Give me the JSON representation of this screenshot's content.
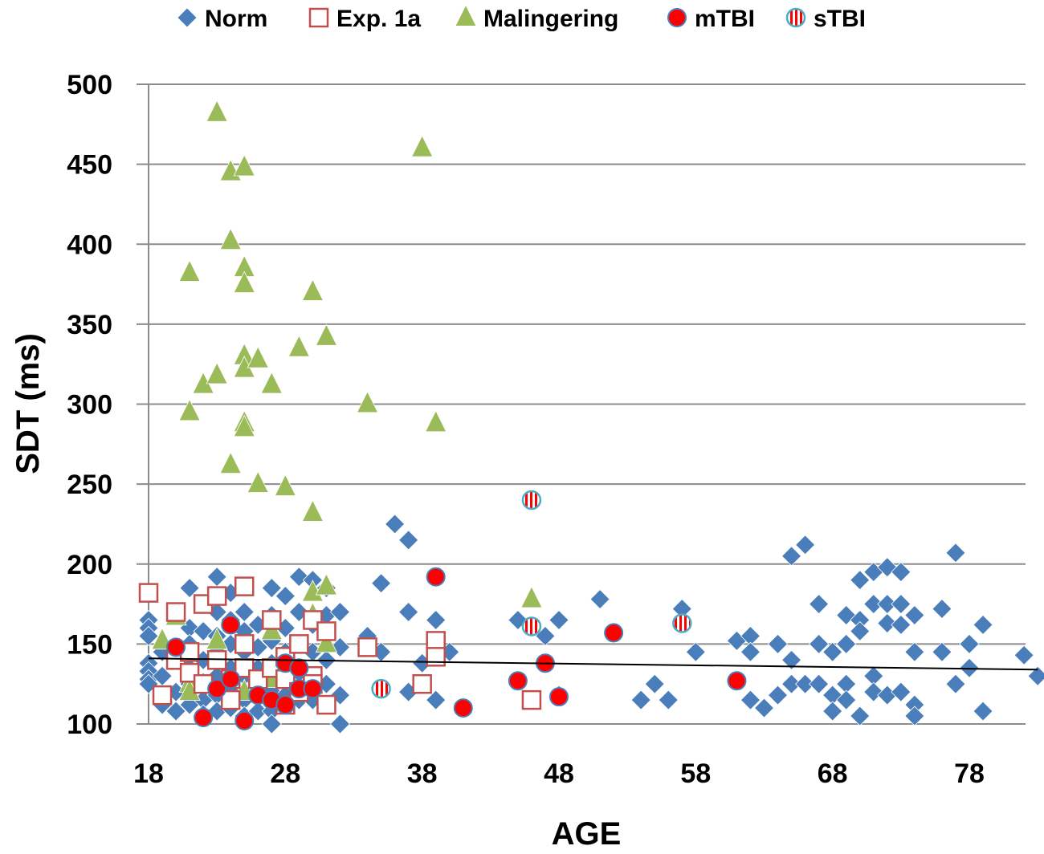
{
  "chart_data": {
    "type": "scatter",
    "title": "",
    "xlabel": "AGE",
    "ylabel": "SDT (ms)",
    "xlim": [
      18,
      83
    ],
    "ylim": [
      100,
      500
    ],
    "xticks": [
      18,
      28,
      38,
      48,
      58,
      68,
      78
    ],
    "yticks": [
      100,
      150,
      200,
      250,
      300,
      350,
      400,
      450,
      500
    ],
    "grid": "horizontal",
    "legend_position": "top",
    "colors": {
      "norm": "#4a7ebb",
      "exp": "#c0504d",
      "malingering": "#9bbb59",
      "mtbi": "#ff0000",
      "stbi_stripe": "#ff0000",
      "stbi_outline": "#4bacc6",
      "trendline": "#000000"
    },
    "trendline": {
      "x": [
        18,
        83
      ],
      "y": [
        141,
        134
      ]
    },
    "series": [
      {
        "name": "Norm",
        "marker": "diamond",
        "points": [
          [
            18,
            165
          ],
          [
            18,
            160
          ],
          [
            18,
            155
          ],
          [
            18,
            138
          ],
          [
            18,
            133
          ],
          [
            18,
            128
          ],
          [
            18,
            125
          ],
          [
            19,
            145
          ],
          [
            19,
            130
          ],
          [
            19,
            118
          ],
          [
            19,
            112
          ],
          [
            20,
            140
          ],
          [
            20,
            120
          ],
          [
            20,
            108
          ],
          [
            21,
            185
          ],
          [
            21,
            160
          ],
          [
            21,
            150
          ],
          [
            21,
            135
          ],
          [
            21,
            125
          ],
          [
            21,
            112
          ],
          [
            22,
            175
          ],
          [
            22,
            158
          ],
          [
            22,
            140
          ],
          [
            22,
            126
          ],
          [
            22,
            115
          ],
          [
            22,
            106
          ],
          [
            23,
            192
          ],
          [
            23,
            170
          ],
          [
            23,
            155
          ],
          [
            23,
            145
          ],
          [
            23,
            130
          ],
          [
            23,
            118
          ],
          [
            23,
            108
          ],
          [
            24,
            182
          ],
          [
            24,
            165
          ],
          [
            24,
            150
          ],
          [
            24,
            135
          ],
          [
            24,
            120
          ],
          [
            24,
            110
          ],
          [
            25,
            170
          ],
          [
            25,
            158
          ],
          [
            25,
            145
          ],
          [
            25,
            130
          ],
          [
            25,
            115
          ],
          [
            25,
            105
          ],
          [
            26,
            162
          ],
          [
            26,
            148
          ],
          [
            26,
            135
          ],
          [
            26,
            118
          ],
          [
            26,
            108
          ],
          [
            27,
            185
          ],
          [
            27,
            168
          ],
          [
            27,
            152
          ],
          [
            27,
            138
          ],
          [
            27,
            120
          ],
          [
            27,
            108
          ],
          [
            27,
            100
          ],
          [
            28,
            180
          ],
          [
            28,
            160
          ],
          [
            28,
            145
          ],
          [
            28,
            130
          ],
          [
            28,
            118
          ],
          [
            29,
            192
          ],
          [
            29,
            170
          ],
          [
            29,
            150
          ],
          [
            29,
            132
          ],
          [
            29,
            115
          ],
          [
            30,
            190
          ],
          [
            30,
            162
          ],
          [
            30,
            145
          ],
          [
            30,
            128
          ],
          [
            30,
            115
          ],
          [
            31,
            185
          ],
          [
            31,
            168
          ],
          [
            31,
            140
          ],
          [
            31,
            125
          ],
          [
            32,
            170
          ],
          [
            32,
            148
          ],
          [
            32,
            118
          ],
          [
            32,
            100
          ],
          [
            34,
            155
          ],
          [
            35,
            188
          ],
          [
            35,
            145
          ],
          [
            36,
            225
          ],
          [
            37,
            215
          ],
          [
            37,
            170
          ],
          [
            37,
            120
          ],
          [
            38,
            138
          ],
          [
            39,
            165
          ],
          [
            39,
            145
          ],
          [
            39,
            115
          ],
          [
            40,
            145
          ],
          [
            45,
            165
          ],
          [
            47,
            155
          ],
          [
            48,
            165
          ],
          [
            48,
            118
          ],
          [
            51,
            178
          ],
          [
            54,
            115
          ],
          [
            55,
            125
          ],
          [
            56,
            115
          ],
          [
            57,
            172
          ],
          [
            58,
            145
          ],
          [
            61,
            152
          ],
          [
            62,
            155
          ],
          [
            62,
            115
          ],
          [
            62,
            145
          ],
          [
            63,
            110
          ],
          [
            64,
            150
          ],
          [
            64,
            118
          ],
          [
            65,
            205
          ],
          [
            65,
            140
          ],
          [
            65,
            125
          ],
          [
            66,
            212
          ],
          [
            66,
            125
          ],
          [
            67,
            175
          ],
          [
            67,
            150
          ],
          [
            67,
            125
          ],
          [
            68,
            145
          ],
          [
            68,
            118
          ],
          [
            68,
            108
          ],
          [
            69,
            168
          ],
          [
            69,
            150
          ],
          [
            69,
            125
          ],
          [
            69,
            115
          ],
          [
            70,
            190
          ],
          [
            70,
            165
          ],
          [
            70,
            158
          ],
          [
            70,
            105
          ],
          [
            71,
            195
          ],
          [
            71,
            175
          ],
          [
            71,
            130
          ],
          [
            71,
            120
          ],
          [
            72,
            198
          ],
          [
            72,
            175
          ],
          [
            72,
            163
          ],
          [
            72,
            118
          ],
          [
            73,
            195
          ],
          [
            73,
            175
          ],
          [
            73,
            162
          ],
          [
            73,
            120
          ],
          [
            74,
            168
          ],
          [
            74,
            145
          ],
          [
            74,
            112
          ],
          [
            74,
            105
          ],
          [
            76,
            172
          ],
          [
            76,
            145
          ],
          [
            77,
            207
          ],
          [
            77,
            125
          ],
          [
            78,
            150
          ],
          [
            78,
            135
          ],
          [
            79,
            162
          ],
          [
            79,
            108
          ],
          [
            82,
            143
          ],
          [
            83,
            130
          ]
        ]
      },
      {
        "name": "Exp. 1a",
        "marker": "square",
        "points": [
          [
            18,
            182
          ],
          [
            19,
            118
          ],
          [
            20,
            170
          ],
          [
            20,
            140
          ],
          [
            21,
            145
          ],
          [
            21,
            132
          ],
          [
            22,
            175
          ],
          [
            22,
            125
          ],
          [
            23,
            180
          ],
          [
            23,
            140
          ],
          [
            24,
            128
          ],
          [
            24,
            115
          ],
          [
            25,
            186
          ],
          [
            25,
            150
          ],
          [
            25,
            135
          ],
          [
            26,
            128
          ],
          [
            27,
            165
          ],
          [
            27,
            135
          ],
          [
            28,
            142
          ],
          [
            28,
            128
          ],
          [
            28,
            112
          ],
          [
            29,
            150
          ],
          [
            29,
            120
          ],
          [
            30,
            165
          ],
          [
            30,
            130
          ],
          [
            30,
            125
          ],
          [
            31,
            158
          ],
          [
            31,
            112
          ],
          [
            34,
            148
          ],
          [
            38,
            125
          ],
          [
            39,
            152
          ],
          [
            39,
            142
          ],
          [
            46,
            115
          ]
        ]
      },
      {
        "name": "Malingering",
        "marker": "triangle",
        "points": [
          [
            19,
            152
          ],
          [
            20,
            167
          ],
          [
            21,
            382
          ],
          [
            21,
            295
          ],
          [
            21,
            125
          ],
          [
            21,
            120
          ],
          [
            22,
            312
          ],
          [
            23,
            482
          ],
          [
            23,
            318
          ],
          [
            23,
            152
          ],
          [
            24,
            445
          ],
          [
            24,
            402
          ],
          [
            24,
            262
          ],
          [
            25,
            448
          ],
          [
            25,
            385
          ],
          [
            25,
            375
          ],
          [
            25,
            330
          ],
          [
            25,
            322
          ],
          [
            25,
            288
          ],
          [
            25,
            285
          ],
          [
            25,
            120
          ],
          [
            26,
            328
          ],
          [
            26,
            250
          ],
          [
            27,
            312
          ],
          [
            27,
            158
          ],
          [
            27,
            128
          ],
          [
            28,
            248
          ],
          [
            29,
            335
          ],
          [
            30,
            370
          ],
          [
            30,
            232
          ],
          [
            30,
            182
          ],
          [
            30,
            168
          ],
          [
            31,
            342
          ],
          [
            31,
            186
          ],
          [
            31,
            150
          ],
          [
            34,
            300
          ],
          [
            38,
            460
          ],
          [
            39,
            288
          ],
          [
            46,
            178
          ]
        ]
      },
      {
        "name": "mTBI",
        "marker": "circle",
        "points": [
          [
            20,
            148
          ],
          [
            22,
            104
          ],
          [
            23,
            122
          ],
          [
            24,
            162
          ],
          [
            24,
            128
          ],
          [
            25,
            102
          ],
          [
            26,
            118
          ],
          [
            27,
            115
          ],
          [
            28,
            138
          ],
          [
            28,
            112
          ],
          [
            29,
            135
          ],
          [
            29,
            122
          ],
          [
            30,
            122
          ],
          [
            39,
            192
          ],
          [
            41,
            110
          ],
          [
            45,
            127
          ],
          [
            47,
            138
          ],
          [
            48,
            117
          ],
          [
            52,
            157
          ],
          [
            61,
            127
          ]
        ]
      },
      {
        "name": "sTBI",
        "marker": "striped-circle",
        "points": [
          [
            35,
            122
          ],
          [
            46,
            240
          ],
          [
            46,
            161
          ],
          [
            57,
            163
          ]
        ]
      }
    ]
  }
}
